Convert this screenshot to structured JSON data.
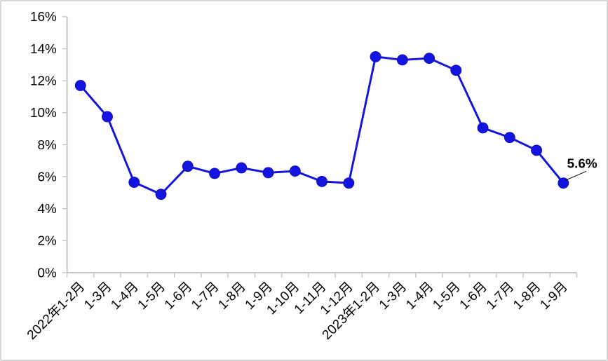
{
  "page": {
    "background_color": "#ffffff",
    "border_color": "#d6d6d6"
  },
  "chart_data": {
    "type": "line",
    "title": "",
    "xlabel": "",
    "ylabel": "",
    "categories": [
      "2022年1-2月",
      "1-3月",
      "1-4月",
      "1-5月",
      "1-6月",
      "1-7月",
      "1-8月",
      "1-9月",
      "1-10月",
      "1-11月",
      "1-12月",
      "2023年1-2月",
      "1-3月",
      "1-4月",
      "1-5月",
      "1-6月",
      "1-7月",
      "1-8月",
      "1-9月"
    ],
    "values": [
      11.7,
      9.75,
      5.65,
      4.9,
      6.65,
      6.2,
      6.55,
      6.25,
      6.35,
      5.7,
      5.6,
      13.5,
      13.3,
      13.4,
      12.65,
      9.05,
      8.45,
      7.65,
      5.6
    ],
    "ylim": [
      0,
      16
    ],
    "ytick_step": 2,
    "ytick_labels": [
      "0%",
      "2%",
      "4%",
      "6%",
      "8%",
      "10%",
      "12%",
      "14%",
      "16%"
    ],
    "grid": false,
    "legend": "none",
    "x_label_rotation_deg": 45,
    "line_color": "#1414e0",
    "marker_color": "#1414e0",
    "marker_edge_color": "#0d0dbb",
    "axis_color": "#c6c6c6",
    "text_color": "#000000",
    "annotation": {
      "text": "5.6%",
      "point_index": 18,
      "bold": true,
      "color": "#000000",
      "leader_line_color": "#000000"
    }
  }
}
